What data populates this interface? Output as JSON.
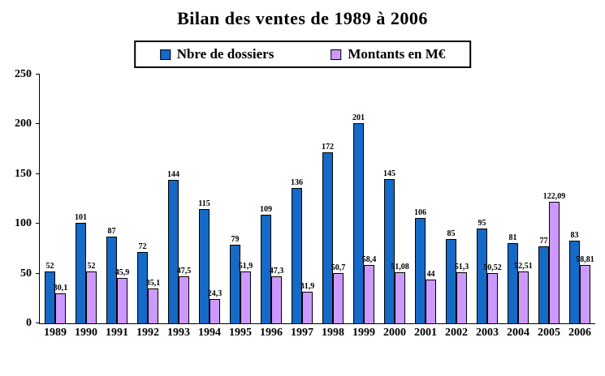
{
  "chart_data": {
    "type": "bar",
    "title": "Bilan des ventes de 1989 à 2006",
    "categories": [
      "1989",
      "1990",
      "1991",
      "1992",
      "1993",
      "1994",
      "1995",
      "1996",
      "1997",
      "1998",
      "1999",
      "2000",
      "2001",
      "2002",
      "2003",
      "2004",
      "2005",
      "2006"
    ],
    "series": [
      {
        "name": "Nbre de dossiers",
        "color": "#1569c7",
        "values": [
          52,
          101,
          87,
          72,
          144,
          115,
          79,
          109,
          136,
          172,
          201,
          145,
          106,
          85,
          95,
          81,
          77,
          83
        ],
        "labels": [
          "52",
          "101",
          "87",
          "72",
          "144",
          "115",
          "79",
          "109",
          "136",
          "172",
          "201",
          "145",
          "106",
          "85",
          "95",
          "81",
          "77",
          "83"
        ]
      },
      {
        "name": "Montants en M€",
        "color": "#cc99ff",
        "values": [
          30.1,
          52,
          45.9,
          35.1,
          47.5,
          24.3,
          51.9,
          47.3,
          31.9,
          50.7,
          58.4,
          51.08,
          44,
          51.3,
          50.52,
          52.51,
          122.09,
          58.81
        ],
        "labels": [
          "30,1",
          "52",
          "45,9",
          "35,1",
          "47,5",
          "24,3",
          "51,9",
          "47,3",
          "31,9",
          "50,7",
          "58,4",
          "51,08",
          "44",
          "51,3",
          "50,52",
          "52,51",
          "122,09",
          "58,81"
        ]
      }
    ],
    "ylim": [
      0,
      250
    ],
    "yticks": [
      0,
      50,
      100,
      150,
      200,
      250
    ],
    "grid": false,
    "legend_position": "top",
    "axis_color": "#000000",
    "background_color": "#ffffff"
  }
}
